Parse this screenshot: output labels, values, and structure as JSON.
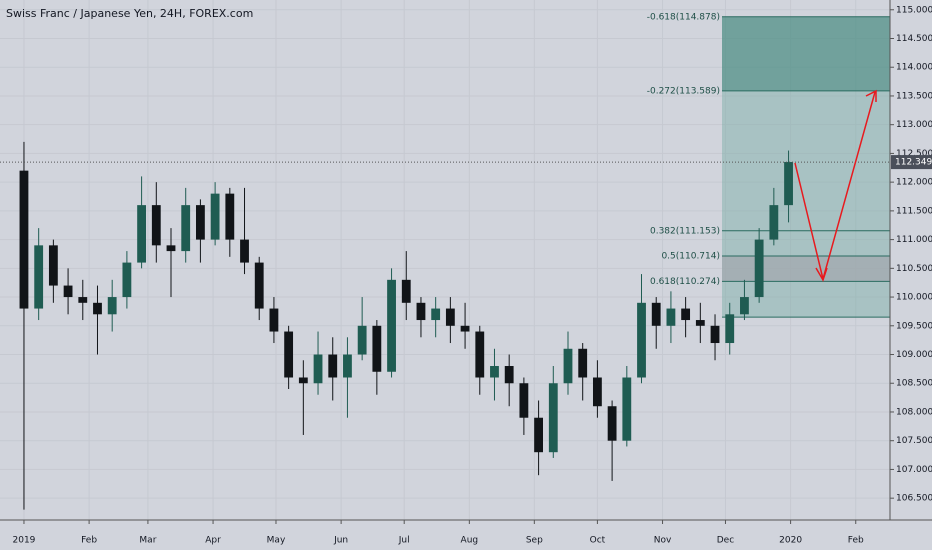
{
  "chart_data": {
    "type": "candlestick",
    "title": "Swiss Franc / Japanese Yen, 24H, FOREX.com",
    "x": [
      0,
      1,
      2,
      3,
      4,
      5,
      6,
      7,
      8,
      9,
      10,
      11,
      12,
      13,
      14,
      15,
      16,
      17,
      18,
      19,
      20,
      21,
      22,
      23,
      24,
      25,
      26,
      27,
      28,
      29,
      30,
      31,
      32,
      33,
      34,
      35,
      36,
      37,
      38,
      39,
      40,
      41,
      42,
      43,
      44,
      45,
      46,
      47,
      48,
      49,
      50,
      51,
      52
    ],
    "open": [
      112.2,
      109.8,
      110.9,
      110.2,
      110.0,
      109.9,
      109.7,
      110.0,
      110.6,
      111.6,
      110.9,
      110.8,
      111.6,
      111.0,
      111.8,
      111.0,
      110.6,
      109.8,
      109.4,
      108.6,
      108.5,
      109.0,
      108.6,
      109.0,
      109.5,
      108.7,
      110.3,
      109.9,
      109.6,
      109.8,
      109.5,
      109.4,
      108.6,
      108.8,
      108.5,
      107.9,
      107.3,
      108.5,
      109.1,
      108.6,
      108.1,
      107.5,
      108.6,
      109.9,
      109.5,
      109.8,
      109.6,
      109.5,
      109.2,
      109.7,
      110.0,
      111.0,
      111.6
    ],
    "high": [
      112.7,
      111.2,
      111.0,
      110.5,
      110.3,
      110.2,
      110.3,
      110.8,
      112.1,
      112.0,
      111.2,
      111.9,
      111.7,
      112.0,
      111.9,
      111.9,
      110.7,
      110.0,
      109.5,
      108.9,
      109.4,
      109.3,
      109.3,
      110.0,
      109.6,
      110.5,
      110.8,
      110.0,
      110.0,
      110.0,
      109.9,
      109.5,
      109.1,
      109.0,
      108.6,
      108.2,
      108.8,
      109.4,
      109.2,
      108.9,
      108.2,
      108.8,
      110.4,
      110.0,
      110.1,
      110.0,
      109.9,
      109.7,
      109.9,
      110.3,
      111.2,
      111.9,
      112.55
    ],
    "low": [
      106.3,
      109.6,
      109.9,
      109.7,
      109.6,
      109.0,
      109.4,
      109.8,
      110.5,
      110.6,
      110.0,
      110.6,
      110.6,
      110.9,
      110.7,
      110.4,
      109.6,
      109.2,
      108.4,
      107.6,
      108.3,
      108.2,
      107.9,
      108.9,
      108.3,
      108.6,
      109.6,
      109.3,
      109.3,
      109.2,
      109.1,
      108.3,
      108.2,
      108.1,
      107.6,
      106.9,
      107.2,
      108.3,
      108.2,
      107.9,
      106.8,
      107.4,
      108.5,
      109.1,
      109.2,
      109.3,
      109.2,
      108.9,
      109.0,
      109.6,
      109.9,
      110.9,
      111.3
    ],
    "close": [
      109.8,
      110.9,
      110.2,
      110.0,
      109.9,
      109.7,
      110.0,
      110.6,
      111.6,
      110.9,
      110.8,
      111.6,
      111.0,
      111.8,
      111.0,
      110.6,
      109.8,
      109.4,
      108.6,
      108.5,
      109.0,
      108.6,
      109.0,
      109.5,
      108.7,
      110.3,
      109.9,
      109.6,
      109.8,
      109.5,
      109.4,
      108.6,
      108.8,
      108.5,
      107.9,
      107.3,
      108.5,
      109.1,
      108.6,
      108.1,
      107.5,
      108.6,
      109.9,
      109.5,
      109.8,
      109.6,
      109.5,
      109.2,
      109.7,
      110.0,
      111.0,
      111.6,
      112.35
    ],
    "up_color": "#1f5c52",
    "down_color": "#111418",
    "xlim": [
      -1.63,
      58.9
    ],
    "xticks": [
      {
        "value": 0,
        "label": "2019"
      },
      {
        "value": 4.43,
        "label": "Feb"
      },
      {
        "value": 8.43,
        "label": "Mar"
      },
      {
        "value": 12.86,
        "label": "Apr"
      },
      {
        "value": 17.14,
        "label": "May"
      },
      {
        "value": 21.57,
        "label": "Jun"
      },
      {
        "value": 25.86,
        "label": "Jul"
      },
      {
        "value": 30.29,
        "label": "Aug"
      },
      {
        "value": 34.71,
        "label": "Sep"
      },
      {
        "value": 39.0,
        "label": "Oct"
      },
      {
        "value": 43.43,
        "label": "Nov"
      },
      {
        "value": 47.71,
        "label": "Dec"
      },
      {
        "value": 52.14,
        "label": "2020"
      },
      {
        "value": 56.57,
        "label": "Feb"
      }
    ],
    "ylim": [
      106.12,
      115.17
    ],
    "yticks": [
      {
        "value": 106.5,
        "label": "106.500"
      },
      {
        "value": 107,
        "label": "107.000"
      },
      {
        "value": 107.5,
        "label": "107.500"
      },
      {
        "value": 108,
        "label": "108.000"
      },
      {
        "value": 108.5,
        "label": "108.500"
      },
      {
        "value": 109,
        "label": "109.000"
      },
      {
        "value": 109.5,
        "label": "109.500"
      },
      {
        "value": 110,
        "label": "110.000"
      },
      {
        "value": 110.5,
        "label": "110.500"
      },
      {
        "value": 111,
        "label": "111.000"
      },
      {
        "value": 111.5,
        "label": "111.500"
      },
      {
        "value": 112,
        "label": "112.000"
      },
      {
        "value": 112.5,
        "label": "112.500"
      },
      {
        "value": 113,
        "label": "113.000"
      },
      {
        "value": 113.5,
        "label": "113.500"
      },
      {
        "value": 114,
        "label": "114.000"
      },
      {
        "value": 114.5,
        "label": "114.500"
      },
      {
        "value": 115,
        "label": "115.000"
      }
    ],
    "grid": true,
    "last_price": 112.349,
    "fib_levels": [
      {
        "value": 114.878,
        "label": "-0.618(114.878)"
      },
      {
        "value": 113.589,
        "label": "-0.272(113.589)"
      },
      {
        "value": 111.153,
        "label": "0.382(111.153)"
      },
      {
        "value": 110.714,
        "label": "0.5(110.714)"
      },
      {
        "value": 110.274,
        "label": "0.618(110.274)"
      },
      {
        "value": 109.65,
        "label": null
      }
    ]
  }
}
